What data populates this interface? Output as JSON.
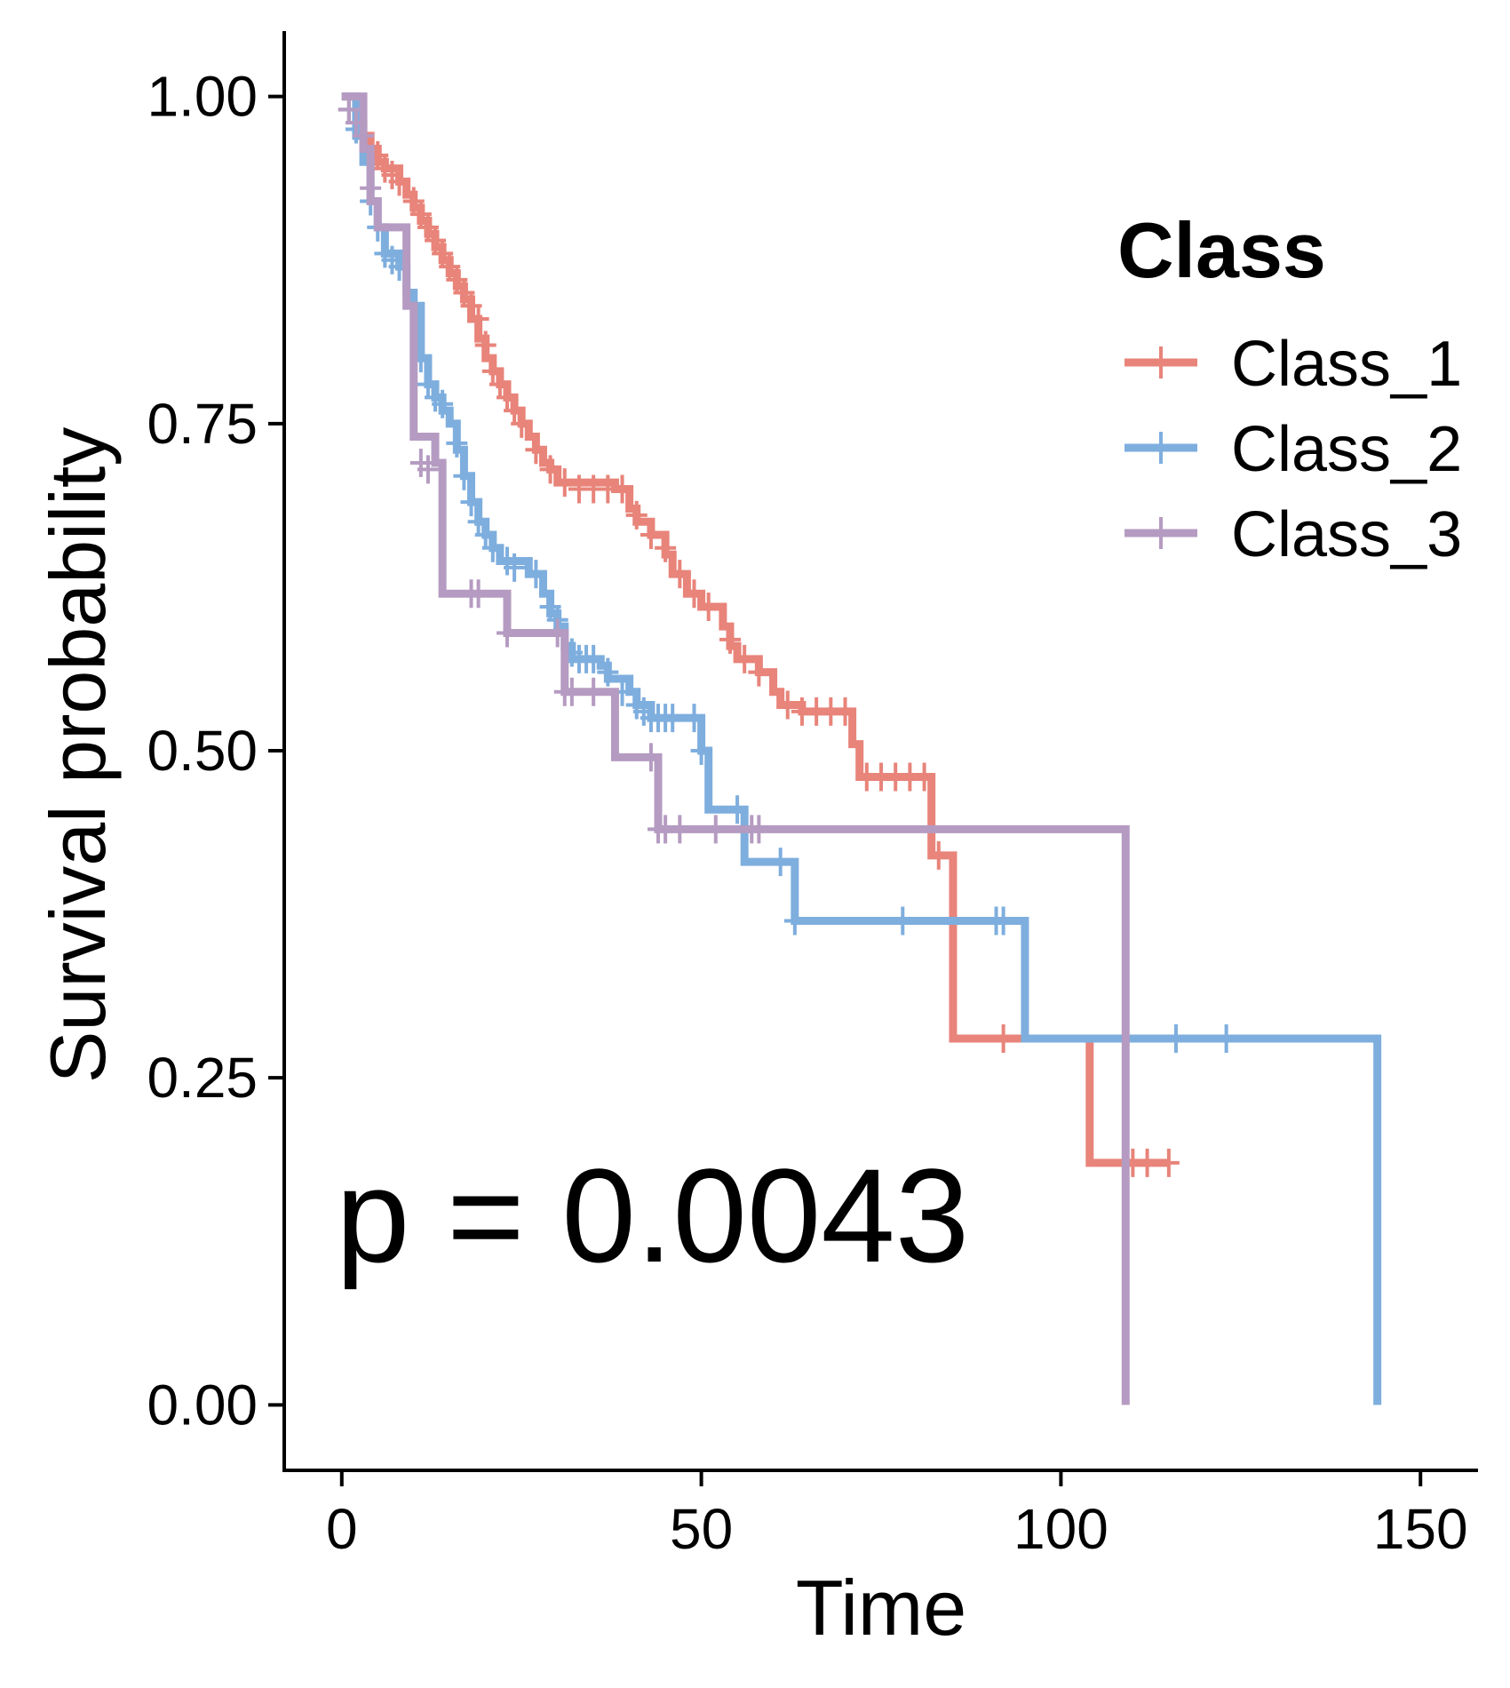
{
  "chart_data": {
    "type": "line",
    "subtype": "kaplan-meier",
    "xlabel": "Time",
    "ylabel": "Survival probability",
    "xlim": [
      -8,
      158
    ],
    "ylim": [
      -0.05,
      1.05
    ],
    "x_ticks": [
      "0",
      "50",
      "100",
      "150"
    ],
    "x_tick_values": [
      0,
      50,
      100,
      150
    ],
    "y_ticks": [
      "0.00",
      "0.25",
      "0.50",
      "0.75",
      "1.00"
    ],
    "y_tick_values": [
      0,
      0.25,
      0.5,
      0.75,
      1.0
    ],
    "grid": false,
    "legend": {
      "title": "Class",
      "position": "right"
    },
    "annotation": "p = 0.0043",
    "series": [
      {
        "name": "Class_1",
        "color": "#E8847A",
        "steps": [
          [
            0,
            1.0
          ],
          [
            2,
            0.98
          ],
          [
            3,
            0.97
          ],
          [
            4,
            0.96
          ],
          [
            5,
            0.95
          ],
          [
            6,
            0.945
          ],
          [
            8,
            0.935
          ],
          [
            9,
            0.925
          ],
          [
            10,
            0.915
          ],
          [
            11,
            0.905
          ],
          [
            12,
            0.895
          ],
          [
            13,
            0.885
          ],
          [
            14,
            0.875
          ],
          [
            15,
            0.865
          ],
          [
            16,
            0.855
          ],
          [
            17,
            0.845
          ],
          [
            18,
            0.83
          ],
          [
            19,
            0.815
          ],
          [
            20,
            0.8
          ],
          [
            21,
            0.79
          ],
          [
            22,
            0.78
          ],
          [
            23,
            0.77
          ],
          [
            24,
            0.76
          ],
          [
            25,
            0.75
          ],
          [
            26,
            0.74
          ],
          [
            27,
            0.73
          ],
          [
            28,
            0.72
          ],
          [
            29,
            0.715
          ],
          [
            30,
            0.705
          ],
          [
            38,
            0.7
          ],
          [
            40,
            0.685
          ],
          [
            41,
            0.675
          ],
          [
            43,
            0.665
          ],
          [
            45,
            0.65
          ],
          [
            46,
            0.635
          ],
          [
            48,
            0.62
          ],
          [
            50,
            0.61
          ],
          [
            53,
            0.595
          ],
          [
            54,
            0.58
          ],
          [
            55,
            0.57
          ],
          [
            58,
            0.56
          ],
          [
            60,
            0.545
          ],
          [
            61,
            0.535
          ],
          [
            64,
            0.53
          ],
          [
            71,
            0.505
          ],
          [
            72,
            0.48
          ],
          [
            82,
            0.42
          ],
          [
            85,
            0.28
          ],
          [
            104,
            0.185
          ],
          [
            115,
            0.185
          ]
        ],
        "censored": [
          [
            1,
            0.99
          ],
          [
            3,
            0.97
          ],
          [
            5,
            0.955
          ],
          [
            6,
            0.945
          ],
          [
            7,
            0.94
          ],
          [
            8,
            0.935
          ],
          [
            10,
            0.92
          ],
          [
            11,
            0.91
          ],
          [
            12,
            0.9
          ],
          [
            13,
            0.89
          ],
          [
            14,
            0.88
          ],
          [
            15,
            0.87
          ],
          [
            16,
            0.86
          ],
          [
            17,
            0.85
          ],
          [
            18,
            0.84
          ],
          [
            19,
            0.83
          ],
          [
            20,
            0.81
          ],
          [
            21,
            0.79
          ],
          [
            22,
            0.78
          ],
          [
            23,
            0.77
          ],
          [
            24,
            0.76
          ],
          [
            25,
            0.75
          ],
          [
            27,
            0.73
          ],
          [
            29,
            0.715
          ],
          [
            31,
            0.705
          ],
          [
            33,
            0.7
          ],
          [
            35,
            0.7
          ],
          [
            37,
            0.7
          ],
          [
            39,
            0.7
          ],
          [
            41,
            0.68
          ],
          [
            43,
            0.665
          ],
          [
            45,
            0.655
          ],
          [
            47,
            0.635
          ],
          [
            49,
            0.62
          ],
          [
            51,
            0.61
          ],
          [
            54,
            0.585
          ],
          [
            56,
            0.57
          ],
          [
            58,
            0.56
          ],
          [
            62,
            0.535
          ],
          [
            64,
            0.53
          ],
          [
            66,
            0.53
          ],
          [
            68,
            0.53
          ],
          [
            70,
            0.53
          ],
          [
            73,
            0.48
          ],
          [
            75,
            0.48
          ],
          [
            77,
            0.48
          ],
          [
            79,
            0.48
          ],
          [
            81,
            0.48
          ],
          [
            83,
            0.42
          ],
          [
            92,
            0.28
          ],
          [
            110,
            0.185
          ],
          [
            112,
            0.185
          ],
          [
            115,
            0.185
          ]
        ]
      },
      {
        "name": "Class_2",
        "color": "#7EAEDE",
        "steps": [
          [
            0,
            1.0
          ],
          [
            2,
            0.97
          ],
          [
            3,
            0.95
          ],
          [
            4,
            0.92
          ],
          [
            5,
            0.9
          ],
          [
            6,
            0.88
          ],
          [
            8,
            0.87
          ],
          [
            9,
            0.85
          ],
          [
            10,
            0.84
          ],
          [
            11,
            0.8
          ],
          [
            12,
            0.78
          ],
          [
            13,
            0.77
          ],
          [
            14,
            0.76
          ],
          [
            15,
            0.75
          ],
          [
            16,
            0.73
          ],
          [
            17,
            0.71
          ],
          [
            18,
            0.69
          ],
          [
            19,
            0.675
          ],
          [
            20,
            0.665
          ],
          [
            21,
            0.655
          ],
          [
            22,
            0.645
          ],
          [
            26,
            0.635
          ],
          [
            28,
            0.62
          ],
          [
            29,
            0.605
          ],
          [
            30,
            0.595
          ],
          [
            31,
            0.58
          ],
          [
            32,
            0.57
          ],
          [
            36,
            0.565
          ],
          [
            37,
            0.555
          ],
          [
            40,
            0.545
          ],
          [
            41,
            0.535
          ],
          [
            43,
            0.525
          ],
          [
            50,
            0.5
          ],
          [
            51,
            0.455
          ],
          [
            56,
            0.415
          ],
          [
            63,
            0.37
          ],
          [
            95,
            0.28
          ],
          [
            144,
            0.28
          ],
          [
            144,
            0.0
          ]
        ],
        "censored": [
          [
            1,
            0.99
          ],
          [
            2,
            0.975
          ],
          [
            4,
            0.92
          ],
          [
            5,
            0.9
          ],
          [
            6,
            0.88
          ],
          [
            7,
            0.875
          ],
          [
            8,
            0.87
          ],
          [
            10,
            0.84
          ],
          [
            11,
            0.8
          ],
          [
            12,
            0.78
          ],
          [
            13,
            0.77
          ],
          [
            14,
            0.765
          ],
          [
            16,
            0.735
          ],
          [
            17,
            0.71
          ],
          [
            18,
            0.69
          ],
          [
            19,
            0.675
          ],
          [
            20,
            0.665
          ],
          [
            21,
            0.655
          ],
          [
            23,
            0.645
          ],
          [
            24,
            0.64
          ],
          [
            27,
            0.635
          ],
          [
            29,
            0.61
          ],
          [
            30,
            0.6
          ],
          [
            32,
            0.575
          ],
          [
            33,
            0.57
          ],
          [
            34,
            0.57
          ],
          [
            35,
            0.57
          ],
          [
            37,
            0.56
          ],
          [
            39,
            0.545
          ],
          [
            41,
            0.535
          ],
          [
            42,
            0.53
          ],
          [
            43,
            0.525
          ],
          [
            44,
            0.525
          ],
          [
            45,
            0.525
          ],
          [
            46,
            0.525
          ],
          [
            49,
            0.525
          ],
          [
            50,
            0.5
          ],
          [
            55,
            0.455
          ],
          [
            61,
            0.415
          ],
          [
            63,
            0.37
          ],
          [
            78,
            0.37
          ],
          [
            91,
            0.37
          ],
          [
            92,
            0.37
          ],
          [
            116,
            0.28
          ],
          [
            123,
            0.28
          ]
        ]
      },
      {
        "name": "Class_3",
        "color": "#B59BC1",
        "steps": [
          [
            0,
            1.0
          ],
          [
            3,
            0.96
          ],
          [
            4,
            0.92
          ],
          [
            5,
            0.9
          ],
          [
            9,
            0.84
          ],
          [
            10,
            0.74
          ],
          [
            13,
            0.72
          ],
          [
            14,
            0.62
          ],
          [
            23,
            0.59
          ],
          [
            31,
            0.545
          ],
          [
            38,
            0.495
          ],
          [
            44,
            0.44
          ],
          [
            109,
            0.0
          ]
        ],
        "censored": [
          [
            1,
            0.99
          ],
          [
            2,
            0.98
          ],
          [
            3,
            0.97
          ],
          [
            4,
            0.93
          ],
          [
            11,
            0.72
          ],
          [
            12,
            0.715
          ],
          [
            18,
            0.62
          ],
          [
            19,
            0.62
          ],
          [
            23,
            0.59
          ],
          [
            30,
            0.59
          ],
          [
            31,
            0.545
          ],
          [
            32,
            0.545
          ],
          [
            35,
            0.545
          ],
          [
            43,
            0.495
          ],
          [
            44,
            0.44
          ],
          [
            45,
            0.44
          ],
          [
            47,
            0.44
          ],
          [
            52,
            0.44
          ],
          [
            57,
            0.44
          ],
          [
            58,
            0.44
          ]
        ]
      }
    ]
  }
}
